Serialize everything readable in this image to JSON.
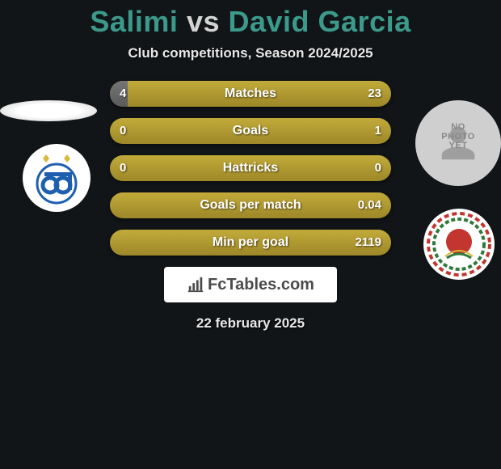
{
  "title_html": "<span style='color:#3c9a8b'>Salimi</span> <span style='color:#d3d3d3'>vs</span> <span style='color:#3c9a8b'>David Garcia</span>",
  "subtitle": "Club competitions, Season 2024/2025",
  "brand": "FcTables.com",
  "date": "22 february 2025",
  "stats": {
    "bar_bg": "#ab9530",
    "bar_grey": "#666666",
    "rows": [
      {
        "label": "Matches",
        "l": "4",
        "r": "23",
        "lw": 22,
        "rw": 0
      },
      {
        "label": "Goals",
        "l": "0",
        "r": "1",
        "lw": 0,
        "rw": 0
      },
      {
        "label": "Hattricks",
        "l": "0",
        "r": "0",
        "lw": 0,
        "rw": 0
      },
      {
        "label": "Goals per match",
        "l": "",
        "r": "0.04",
        "lw": 0,
        "rw": 0
      },
      {
        "label": "Min per goal",
        "l": "",
        "r": "2119",
        "lw": 0,
        "rw": 0
      }
    ]
  },
  "left_player": {
    "photo": "none",
    "club_name": "esteghlal",
    "club_colors": {
      "bg": "#ffffff",
      "accent": "#1e5fb0",
      "gold": "#d8b93a"
    }
  },
  "right_player": {
    "photo": "none",
    "club_name": "al-rayyan",
    "club_colors": {
      "bg": "#ffffff",
      "ring_red": "#c2362f",
      "ring_green": "#2e7a3a",
      "black": "#000"
    }
  },
  "icons": {
    "no_photo": "NO PHOTO YET"
  }
}
